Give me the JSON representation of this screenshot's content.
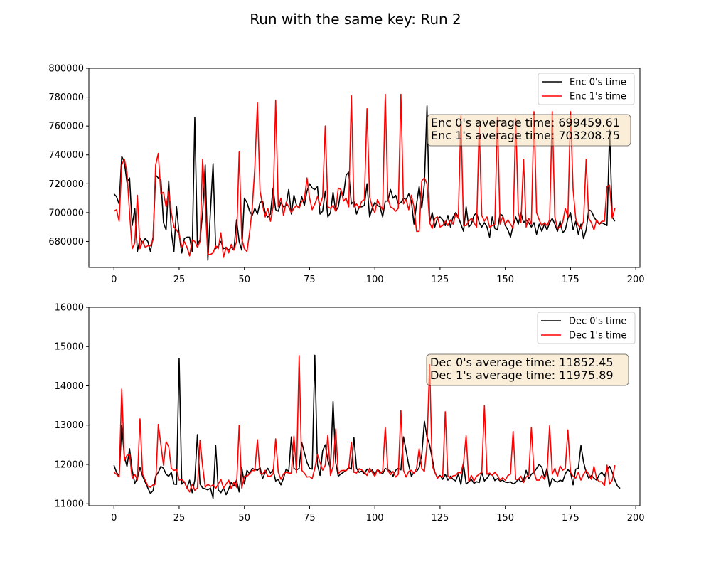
{
  "title": "Run with the same key: Run 2",
  "chart_data": [
    {
      "type": "line",
      "legend_position": "top-right",
      "xlim": [
        -9.6,
        201.6
      ],
      "ylim": [
        662000,
        800000
      ],
      "xticks": [
        0,
        25,
        50,
        75,
        100,
        125,
        150,
        175,
        200
      ],
      "yticks": [
        680000,
        700000,
        720000,
        740000,
        760000,
        780000,
        800000
      ],
      "annotation": [
        "Enc 0's average time: 699459.61",
        "Enc 1's average time: 703208.75"
      ],
      "x_start": 0,
      "series": [
        {
          "name": "Enc 0's time",
          "color": "#000000",
          "values": [
            713000,
            711000,
            706000,
            739000,
            735000,
            721000,
            724000,
            691000,
            703000,
            673000,
            682000,
            679000,
            682000,
            680000,
            673000,
            683000,
            726000,
            724000,
            723000,
            693000,
            688000,
            722000,
            687000,
            673000,
            704000,
            685000,
            672000,
            682000,
            683000,
            683000,
            673000,
            766000,
            678000,
            681000,
            700000,
            733000,
            667000,
            701000,
            734000,
            675000,
            677000,
            680000,
            675000,
            676000,
            674000,
            676000,
            674000,
            695000,
            680000,
            674000,
            710000,
            707000,
            701000,
            698000,
            703000,
            699000,
            707000,
            708000,
            700000,
            697000,
            699000,
            717000,
            702000,
            701000,
            707000,
            704000,
            705000,
            716000,
            699000,
            712000,
            705000,
            703000,
            711000,
            705000,
            715000,
            720000,
            717000,
            716000,
            718000,
            699000,
            701000,
            715000,
            697000,
            700000,
            714000,
            701000,
            704000,
            715000,
            712000,
            726000,
            728000,
            706000,
            708000,
            699000,
            704000,
            704000,
            705000,
            720000,
            697000,
            703000,
            707000,
            705000,
            704000,
            697000,
            708000,
            708000,
            716000,
            710000,
            712000,
            706000,
            707000,
            710000,
            709000,
            713000,
            708000,
            692000,
            706000,
            718000,
            703000,
            720000,
            774000,
            693000,
            700000,
            690000,
            696000,
            697000,
            695000,
            691000,
            698000,
            690000,
            697000,
            700000,
            697000,
            692000,
            687000,
            704000,
            690000,
            692000,
            698000,
            700000,
            693000,
            690000,
            693000,
            690000,
            683000,
            697000,
            689000,
            688000,
            699000,
            698000,
            691000,
            688000,
            683000,
            691000,
            697000,
            692000,
            700000,
            693000,
            695000,
            693000,
            690000,
            693000,
            685000,
            692000,
            687000,
            692000,
            688000,
            693000,
            696000,
            692000,
            687000,
            694000,
            686000,
            688000,
            696000,
            700000,
            688000,
            694000,
            685000,
            692000,
            682000,
            688000,
            702000,
            701000,
            697000,
            694000,
            692000,
            693000,
            692000,
            691000,
            757000,
            697000,
            694000
          ]
        },
        {
          "name": "Enc 1's time",
          "color": "#ff0000",
          "values": [
            701000,
            702000,
            694000,
            733000,
            737000,
            728000,
            700000,
            675000,
            679000,
            712000,
            675000,
            680000,
            676000,
            677000,
            677000,
            681000,
            733000,
            741000,
            713000,
            714000,
            704000,
            715000,
            700000,
            690000,
            688000,
            685000,
            676000,
            680000,
            676000,
            670000,
            681000,
            680000,
            676000,
            680000,
            737000,
            705000,
            671000,
            671000,
            672000,
            677000,
            675000,
            686000,
            669000,
            676000,
            672000,
            678000,
            674000,
            680000,
            742000,
            682000,
            675000,
            673000,
            686000,
            703000,
            731000,
            776000,
            715000,
            705000,
            697000,
            703000,
            694000,
            704000,
            778000,
            704000,
            710000,
            698000,
            707000,
            704000,
            700000,
            703000,
            705000,
            703000,
            708000,
            709000,
            724000,
            710000,
            702000,
            706000,
            711000,
            705000,
            711000,
            760000,
            704000,
            703000,
            705000,
            701000,
            717000,
            716000,
            708000,
            710000,
            704000,
            781000,
            704000,
            706000,
            703000,
            708000,
            709000,
            772000,
            711000,
            704000,
            700000,
            709000,
            705000,
            702000,
            782000,
            710000,
            704000,
            703000,
            701000,
            703000,
            782000,
            706000,
            709000,
            702000,
            712000,
            704000,
            687000,
            687000,
            722000,
            724000,
            720000,
            693000,
            689000,
            696000,
            697000,
            690000,
            691000,
            694000,
            691000,
            695000,
            692000,
            699000,
            696000,
            767000,
            691000,
            691000,
            694000,
            696000,
            693000,
            690000,
            760000,
            698000,
            694000,
            697000,
            690000,
            691000,
            692000,
            766000,
            692000,
            697000,
            692000,
            695000,
            692000,
            689000,
            765000,
            700000,
            693000,
            737000,
            690000,
            696000,
            692000,
            770000,
            700000,
            695000,
            691000,
            693000,
            691000,
            695000,
            770000,
            697000,
            689000,
            690000,
            693000,
            703000,
            697000,
            770000,
            716000,
            696000,
            691000,
            689000,
            694000,
            737000,
            696000,
            693000,
            688000,
            695000,
            692000,
            694000,
            694000,
            718000,
            719000,
            696000,
            703000
          ]
        }
      ]
    },
    {
      "type": "line",
      "legend_position": "top-right",
      "xlim": [
        -9.6,
        201.6
      ],
      "ylim": [
        10950,
        16000
      ],
      "xticks": [
        0,
        25,
        50,
        75,
        100,
        125,
        150,
        175,
        200
      ],
      "yticks": [
        11000,
        12000,
        13000,
        14000,
        15000,
        16000
      ],
      "annotation": [
        "Dec 0's average time: 11852.45",
        "Dec 1's average time: 11975.89"
      ],
      "x_start": 0,
      "series": [
        {
          "name": "Dec 0's time",
          "color": "#000000",
          "values": [
            11980,
            11800,
            11700,
            13000,
            12200,
            11950,
            12400,
            11850,
            11520,
            11650,
            11920,
            11700,
            11550,
            11400,
            11260,
            11330,
            11700,
            11800,
            11950,
            11900,
            11750,
            11700,
            11800,
            11500,
            11490,
            14700,
            11500,
            11560,
            11400,
            11600,
            11280,
            11600,
            12760,
            11500,
            11400,
            11380,
            11350,
            11400,
            11140,
            12480,
            11350,
            11280,
            11400,
            11230,
            11380,
            11550,
            11450,
            11600,
            11300,
            11930,
            11500,
            11850,
            11760,
            11900,
            11870,
            11850,
            11920,
            11640,
            11800,
            11900,
            11780,
            11860,
            11580,
            11620,
            11480,
            11650,
            11880,
            11820,
            12700,
            11900,
            11860,
            11900,
            12560,
            12300,
            12050,
            11900,
            11880,
            14780,
            12000,
            11720,
            12350,
            12500,
            12100,
            11900,
            13600,
            12050,
            11700,
            11760,
            11800,
            11860,
            11920,
            11880,
            12680,
            11900,
            11800,
            11830,
            11760,
            11880,
            11800,
            11860,
            11750,
            11870,
            11820,
            11760,
            11900,
            11860,
            11830,
            11700,
            11850,
            11900,
            11860,
            12700,
            12350,
            11980,
            11700,
            11800,
            11820,
            11920,
            12250,
            13100,
            12700,
            12500,
            12150,
            11800,
            11670,
            11720,
            11620,
            11750,
            11600,
            11700,
            11620,
            11580,
            11760,
            11490,
            12000,
            11500,
            11560,
            11620,
            11520,
            11560,
            11540,
            11800,
            11580,
            11650,
            11750,
            11750,
            11590,
            11640,
            11580,
            11600,
            11550,
            11540,
            11560,
            11500,
            11540,
            11630,
            11560,
            11600,
            11850,
            11640,
            11750,
            11800,
            11900,
            12000,
            11930,
            11680,
            11900,
            11430,
            11650,
            11580,
            11550,
            11600,
            11570,
            11760,
            11870,
            11800,
            11480,
            11880,
            11900,
            12480,
            12060,
            11800,
            11650,
            11720,
            11650,
            11600,
            11740,
            11800,
            11700,
            11870,
            11950,
            11800,
            11600,
            11450,
            11390
          ]
        },
        {
          "name": "Dec 1's time",
          "color": "#ff0000",
          "values": [
            11800,
            11750,
            11680,
            13920,
            12100,
            12230,
            12250,
            11650,
            11750,
            11600,
            13160,
            11750,
            11600,
            11450,
            11420,
            11480,
            11500,
            13020,
            12500,
            11980,
            12580,
            12450,
            11900,
            11850,
            11860,
            11600,
            11620,
            11550,
            11400,
            11300,
            11500,
            11340,
            11400,
            12620,
            11950,
            11420,
            11500,
            11440,
            11480,
            11390,
            11500,
            11620,
            11400,
            11500,
            11600,
            11380,
            11550,
            11420,
            13000,
            11400,
            11700,
            11700,
            11760,
            11850,
            11840,
            12630,
            11780,
            11750,
            11850,
            11700,
            11700,
            11760,
            12650,
            11800,
            11620,
            11760,
            11800,
            11780,
            11780,
            12720,
            11790,
            14770,
            11850,
            11780,
            11680,
            11690,
            11640,
            11900,
            12250,
            12050,
            11850,
            11980,
            12750,
            11720,
            11950,
            12900,
            11760,
            11840,
            11850,
            11840,
            11900,
            12570,
            11800,
            11780,
            11890,
            11860,
            11800,
            11720,
            11900,
            11800,
            11700,
            11870,
            11770,
            11830,
            12950,
            11850,
            11740,
            11820,
            11680,
            11750,
            13380,
            11850,
            11680,
            11820,
            11850,
            11770,
            11900,
            12400,
            11900,
            11820,
            12500,
            14540,
            11960,
            11800,
            11650,
            11700,
            11680,
            13340,
            11700,
            11650,
            11710,
            11720,
            11800,
            11780,
            12050,
            12730,
            11570,
            11720,
            11580,
            11700,
            11750,
            11800,
            13500,
            11750,
            11780,
            11720,
            11800,
            11720,
            11600,
            11660,
            11600,
            11720,
            11750,
            12840,
            11620,
            11620,
            11700,
            11540,
            11680,
            11720,
            12950,
            11800,
            11600,
            11600,
            11720,
            11620,
            11800,
            12980,
            11750,
            11900,
            11700,
            11960,
            11850,
            11900,
            12880,
            11800,
            11700,
            11650,
            11800,
            11600,
            11750,
            11850,
            11750,
            11620,
            11950,
            11640,
            11560,
            11560,
            11460,
            11980,
            11500,
            11600,
            11980
          ]
        }
      ]
    }
  ]
}
